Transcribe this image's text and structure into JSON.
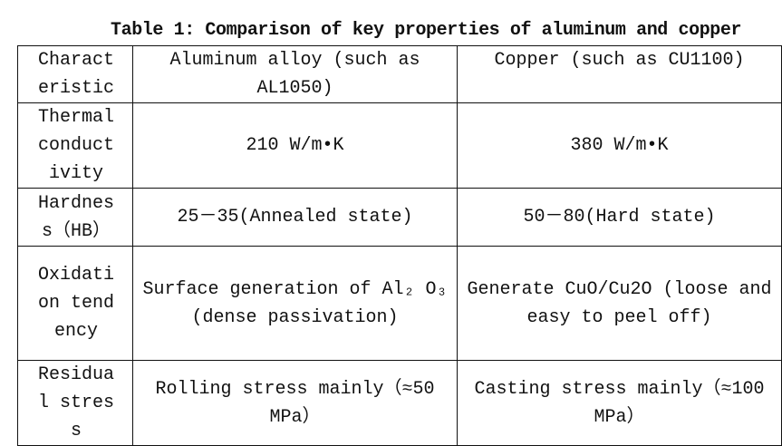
{
  "title": "Table 1: Comparison of key properties of aluminum and copper",
  "headers": [
    "Characteristic",
    "Aluminum alloy (such as AL1050)",
    "Copper (such as CU1100)"
  ],
  "rows": [
    [
      "Thermal conductivity",
      "210 W/m•K",
      "380 W/m•K"
    ],
    [
      "Hardness（HB）",
      "25－35(Annealed state)",
      "50－80(Hard state)"
    ],
    [
      "Oxidation tendency",
      "Surface generation of Al₂ O₃ (dense passivation)",
      "Generate CuO/Cu2O (loose and easy to peel off)"
    ],
    [
      "Residual stress",
      "Rolling stress mainly（≈50 MPa）",
      "Casting stress mainly（≈100 MPa）"
    ]
  ]
}
